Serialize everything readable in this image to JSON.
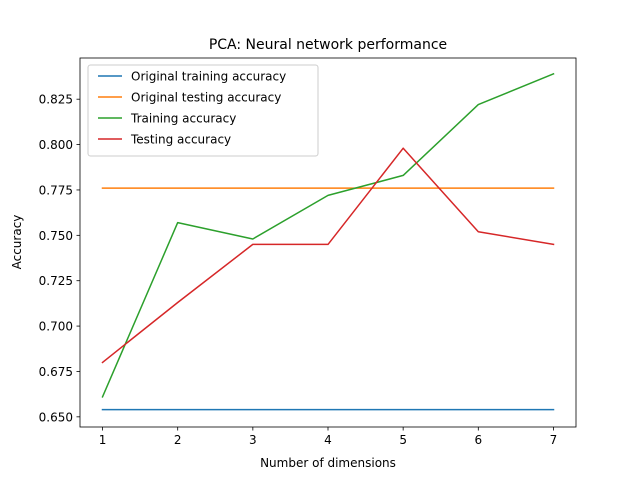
{
  "chart_data": {
    "type": "line",
    "title": "PCA: Neural network performance",
    "xlabel": "Number of dimensions",
    "ylabel": "Accuracy",
    "x": [
      1,
      2,
      3,
      4,
      5,
      6,
      7
    ],
    "xlim": [
      0.7,
      7.3
    ],
    "ylim": [
      0.6444,
      0.8477
    ],
    "xticks": [
      1,
      2,
      3,
      4,
      5,
      6,
      7
    ],
    "yticks": [
      0.65,
      0.675,
      0.7,
      0.725,
      0.75,
      0.775,
      0.8,
      0.825
    ],
    "ytick_labels": [
      "0.650",
      "0.675",
      "0.700",
      "0.725",
      "0.750",
      "0.775",
      "0.800",
      "0.825"
    ],
    "grid": false,
    "legend_position": "top-left",
    "series": [
      {
        "name": "Original training accuracy",
        "color": "#1f77b4",
        "values": [
          0.654,
          0.654,
          0.654,
          0.654,
          0.654,
          0.654,
          0.654
        ]
      },
      {
        "name": "Original testing accuracy",
        "color": "#ff7f0e",
        "values": [
          0.776,
          0.776,
          0.776,
          0.776,
          0.776,
          0.776,
          0.776
        ]
      },
      {
        "name": "Training accuracy",
        "color": "#2ca02c",
        "values": [
          0.661,
          0.757,
          0.748,
          0.772,
          0.783,
          0.822,
          0.839
        ]
      },
      {
        "name": "Testing accuracy",
        "color": "#d62728",
        "values": [
          0.68,
          0.713,
          0.745,
          0.745,
          0.798,
          0.752,
          0.745
        ]
      }
    ]
  }
}
